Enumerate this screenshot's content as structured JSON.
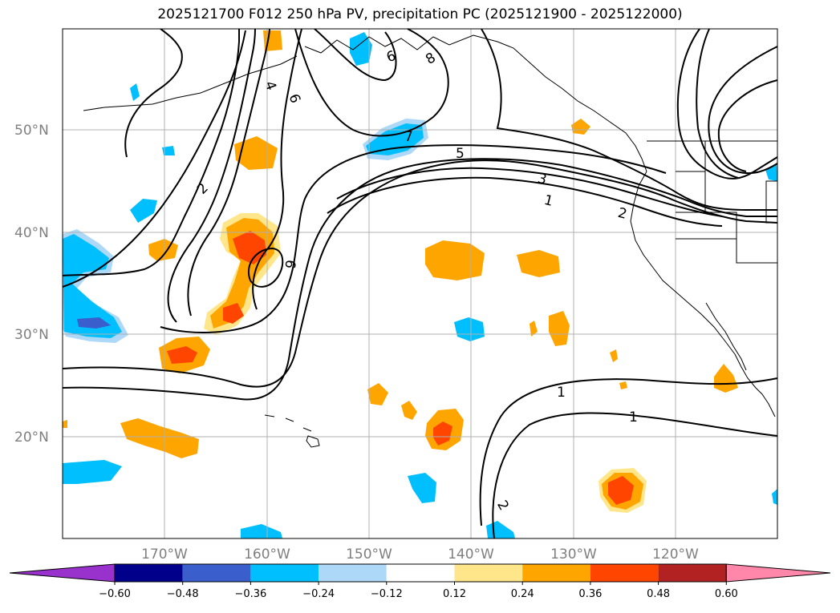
{
  "title": "2025121700 F012 250 hPa PV, precipitation PC (2025121900 - 2025122000)",
  "colors": {
    "coast": "#000000",
    "contour": "#000000",
    "grid": "#b0b0b0",
    "axis_label": "#7f7f7f"
  },
  "map": {
    "lat_labels": [
      "50°N",
      "40°N",
      "30°N",
      "20°N"
    ],
    "lon_labels": [
      "170°W",
      "160°W",
      "150°W",
      "140°W",
      "130°W",
      "120°W"
    ],
    "pv_contour_labels": [
      "2",
      "4",
      "6",
      "8",
      "9",
      "7",
      "5",
      "3",
      "1",
      "2",
      "6",
      "1",
      "1",
      "2"
    ]
  },
  "colorbar": {
    "ticks": [
      "−0.60",
      "−0.48",
      "−0.36",
      "−0.24",
      "−0.12",
      "0.12",
      "0.24",
      "0.36",
      "0.48",
      "0.60"
    ],
    "colors": [
      "#9932cc",
      "#00008b",
      "#3a5fcd",
      "#00bfff",
      "#add8f7",
      "#ffffff",
      "#ffe68a",
      "#ffa500",
      "#ff4500",
      "#b22222",
      "#ff88aa"
    ]
  }
}
